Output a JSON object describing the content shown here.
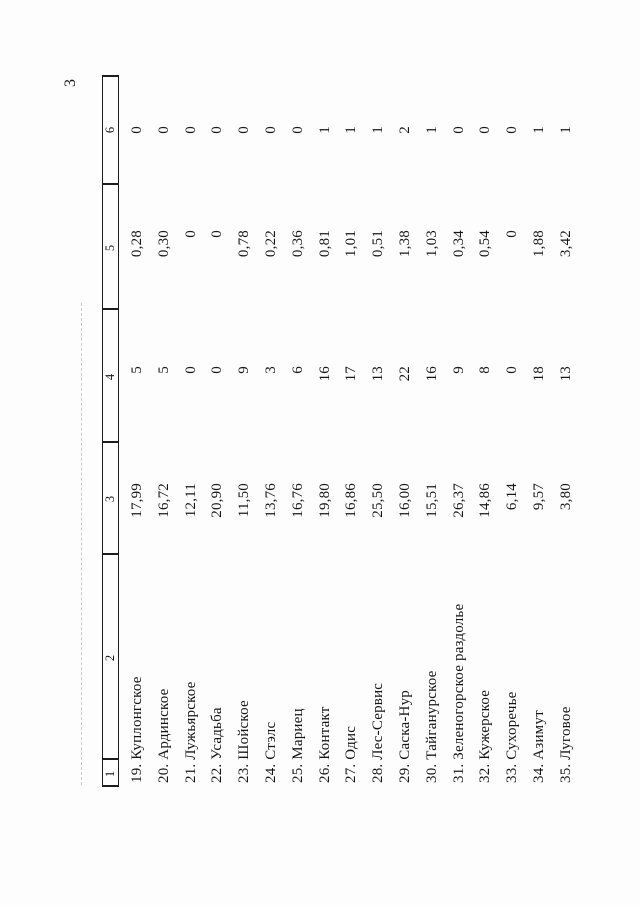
{
  "page": {
    "number": "3"
  },
  "table": {
    "headers": [
      "1",
      "2",
      "3",
      "4",
      "5",
      "6"
    ],
    "rows": [
      {
        "name": "19. Куплонгское",
        "c3": "17,99",
        "c4": "5",
        "c5": "0,28",
        "c6": "0"
      },
      {
        "name": "20. Ардинское",
        "c3": "16,72",
        "c4": "5",
        "c5": "0,30",
        "c6": "0"
      },
      {
        "name": "21. Лужьярское",
        "c3": "12,11",
        "c4": "0",
        "c5": "0",
        "c6": "0"
      },
      {
        "name": "22. Усадьба",
        "c3": "20,90",
        "c4": "0",
        "c5": "0",
        "c6": "0"
      },
      {
        "name": "23. Шойское",
        "c3": "11,50",
        "c4": "9",
        "c5": "0,78",
        "c6": "0"
      },
      {
        "name": "24. Стэлс",
        "c3": "13,76",
        "c4": "3",
        "c5": "0,22",
        "c6": "0"
      },
      {
        "name": "25. Мариец",
        "c3": "16,76",
        "c4": "6",
        "c5": "0,36",
        "c6": "0"
      },
      {
        "name": "26. Контакт",
        "c3": "19,80",
        "c4": "16",
        "c5": "0,81",
        "c6": "1"
      },
      {
        "name": "27. Одис",
        "c3": "16,86",
        "c4": "17",
        "c5": "1,01",
        "c6": "1"
      },
      {
        "name": "28. Лес-Сервис",
        "c3": "25,50",
        "c4": "13",
        "c5": "0,51",
        "c6": "1"
      },
      {
        "name": "29. Саска-Нур",
        "c3": "16,00",
        "c4": "22",
        "c5": "1,38",
        "c6": "2"
      },
      {
        "name": "30. Тайганурское",
        "c3": "15,51",
        "c4": "16",
        "c5": "1,03",
        "c6": "1"
      },
      {
        "name": "31. Зеленогорское раздолье",
        "c3": "26,37",
        "c4": "9",
        "c5": "0,34",
        "c6": "0"
      },
      {
        "name": "32. Кужерское",
        "c3": "14,86",
        "c4": "8",
        "c5": "0,54",
        "c6": "0"
      },
      {
        "name": "33. Сухоречье",
        "c3": "6,14",
        "c4": "0",
        "c5": "0",
        "c6": "0"
      },
      {
        "name": "34. Азимут",
        "c3": "9,57",
        "c4": "18",
        "c5": "1,88",
        "c6": "1"
      },
      {
        "name": "35. Луговое",
        "c3": "3,80",
        "c4": "13",
        "c5": "3,42",
        "c6": "1"
      }
    ]
  }
}
